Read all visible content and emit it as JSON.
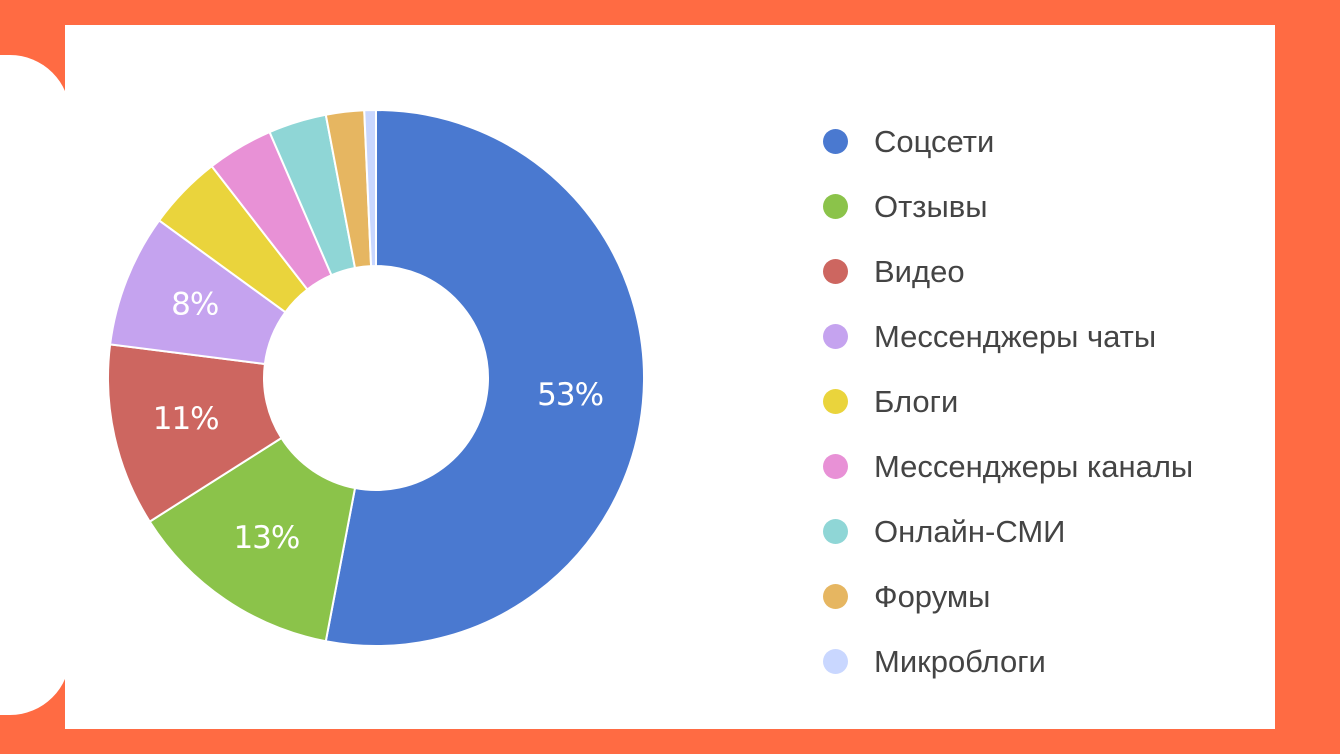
{
  "chart_data": {
    "type": "pie",
    "donut": true,
    "title": "",
    "legend_position": "right",
    "categories": [
      "Соцсети",
      "Отзывы",
      "Видео",
      "Мессенджеры чаты",
      "Блоги",
      "Мессенджеры каналы",
      "Онлайн-СМИ",
      "Форумы",
      "Микроблоги"
    ],
    "values": [
      53,
      13,
      11,
      8,
      4.5,
      4,
      3.5,
      2.3,
      0.7
    ],
    "value_labels": [
      "53%",
      "13%",
      "11%",
      "8%",
      "",
      "",
      "",
      "",
      ""
    ],
    "colors": [
      "#4a79d0",
      "#8bc34a",
      "#cd6660",
      "#c5a3ef",
      "#ead43c",
      "#e891d6",
      "#8fd6d6",
      "#e6b661",
      "#c9d7ff"
    ]
  }
}
